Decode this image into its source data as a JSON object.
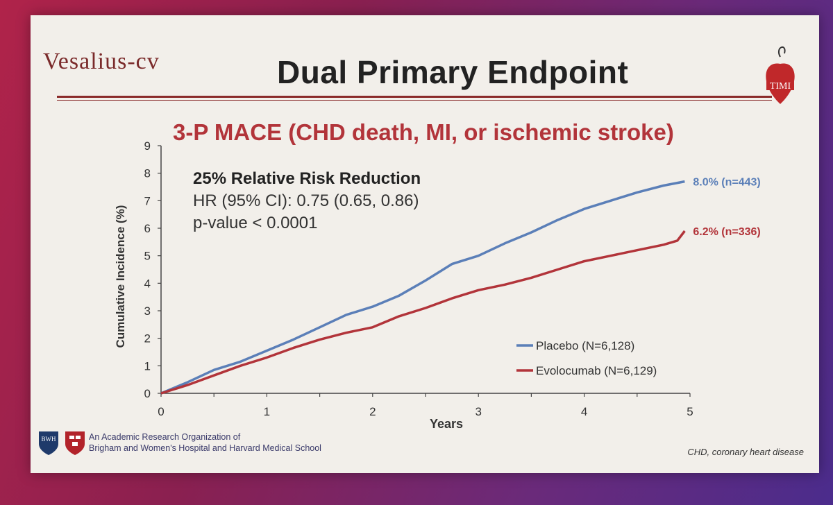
{
  "slide": {
    "brand": "Vesalius-cv",
    "title": "Dual Primary Endpoint",
    "timi_label": "TIMI",
    "subtitle": "3-P MACE (CHD death, MI, or ischemic stroke)",
    "stats": {
      "rrr": "25% Relative Risk Reduction",
      "hr": "HR (95% CI): 0.75 (0.65, 0.86)",
      "p": "p-value < 0.0001"
    },
    "footer": {
      "bwh_label": "BWH",
      "org_line1": "An Academic Research Organization of",
      "org_line2": "Brigham and Women's Hospital and Harvard Medical School",
      "note": "CHD, coronary heart disease"
    }
  },
  "chart_data": {
    "type": "line",
    "title": "3-P MACE (CHD death, MI, or ischemic stroke)",
    "xlabel": "Years",
    "ylabel": "Cumulative Incidence (%)",
    "xlim": [
      0,
      5
    ],
    "ylim": [
      0,
      9
    ],
    "xticks": [
      "0",
      "1",
      "2",
      "3",
      "4",
      "5"
    ],
    "yticks": [
      "0",
      "1",
      "2",
      "3",
      "4",
      "5",
      "6",
      "7",
      "8",
      "9"
    ],
    "grid": false,
    "legend": "bottom-right",
    "series": [
      {
        "name": "Placebo (N=6,128)",
        "color": "#5b7fb8",
        "end_label": "8.0% (n=443)",
        "x": [
          0,
          0.25,
          0.5,
          0.75,
          1.0,
          1.25,
          1.5,
          1.75,
          2.0,
          2.25,
          2.5,
          2.75,
          3.0,
          3.25,
          3.5,
          3.75,
          4.0,
          4.25,
          4.5,
          4.75,
          4.95
        ],
        "y": [
          0,
          0.4,
          0.85,
          1.15,
          1.55,
          1.95,
          2.4,
          2.85,
          3.15,
          3.55,
          4.1,
          4.7,
          5.0,
          5.45,
          5.85,
          6.3,
          6.7,
          7.0,
          7.3,
          7.55,
          7.7
        ]
      },
      {
        "name": "Evolocumab (N=6,129)",
        "color": "#b2343a",
        "end_label": "6.2% (n=336)",
        "x": [
          0,
          0.25,
          0.5,
          0.75,
          1.0,
          1.25,
          1.5,
          1.75,
          2.0,
          2.25,
          2.5,
          2.75,
          3.0,
          3.25,
          3.5,
          3.75,
          4.0,
          4.25,
          4.5,
          4.75,
          4.88,
          4.95
        ],
        "y": [
          0,
          0.3,
          0.65,
          1.0,
          1.3,
          1.65,
          1.95,
          2.2,
          2.4,
          2.8,
          3.1,
          3.45,
          3.75,
          3.95,
          4.2,
          4.5,
          4.8,
          5.0,
          5.2,
          5.4,
          5.55,
          5.9
        ]
      }
    ]
  }
}
